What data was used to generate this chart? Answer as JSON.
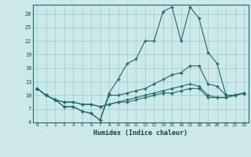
{
  "xlabel": "Humidex (Indice chaleur)",
  "bg_color": "#cce8e8",
  "grid_color": "#99cccc",
  "line_color": "#1a6b6b",
  "xlim": [
    -0.5,
    23.5
  ],
  "ylim": [
    4,
    30
  ],
  "yticks": [
    4,
    7,
    10,
    13,
    16,
    19,
    22,
    25,
    28
  ],
  "xticks": [
    0,
    1,
    2,
    3,
    4,
    5,
    6,
    7,
    8,
    9,
    10,
    11,
    12,
    13,
    14,
    15,
    16,
    17,
    18,
    19,
    20,
    21,
    22,
    23
  ],
  "series": [
    [
      11.5,
      10.0,
      9.0,
      7.5,
      7.5,
      6.5,
      6.0,
      4.5,
      10.5,
      13.5,
      17.0,
      18.0,
      22.0,
      22.0,
      28.5,
      29.5,
      22.0,
      29.5,
      27.0,
      19.5,
      17.0,
      10.0,
      10.0,
      10.5
    ],
    [
      11.5,
      10.0,
      9.0,
      7.5,
      7.5,
      6.5,
      6.0,
      4.5,
      10.0,
      10.0,
      10.5,
      11.0,
      11.5,
      12.5,
      13.5,
      14.5,
      15.0,
      16.5,
      16.5,
      12.5,
      12.0,
      10.0,
      10.0,
      10.5
    ],
    [
      11.5,
      10.0,
      9.0,
      8.5,
      8.5,
      8.0,
      8.0,
      7.5,
      8.0,
      8.5,
      9.0,
      9.5,
      10.0,
      10.5,
      11.0,
      11.5,
      12.0,
      12.5,
      12.0,
      10.0,
      9.5,
      9.5,
      10.0,
      10.5
    ],
    [
      11.5,
      10.0,
      9.0,
      8.5,
      8.5,
      8.0,
      8.0,
      7.5,
      8.0,
      8.5,
      8.5,
      9.0,
      9.5,
      10.0,
      10.5,
      10.5,
      11.0,
      11.5,
      11.5,
      9.5,
      9.5,
      9.5,
      10.0,
      10.5
    ]
  ]
}
